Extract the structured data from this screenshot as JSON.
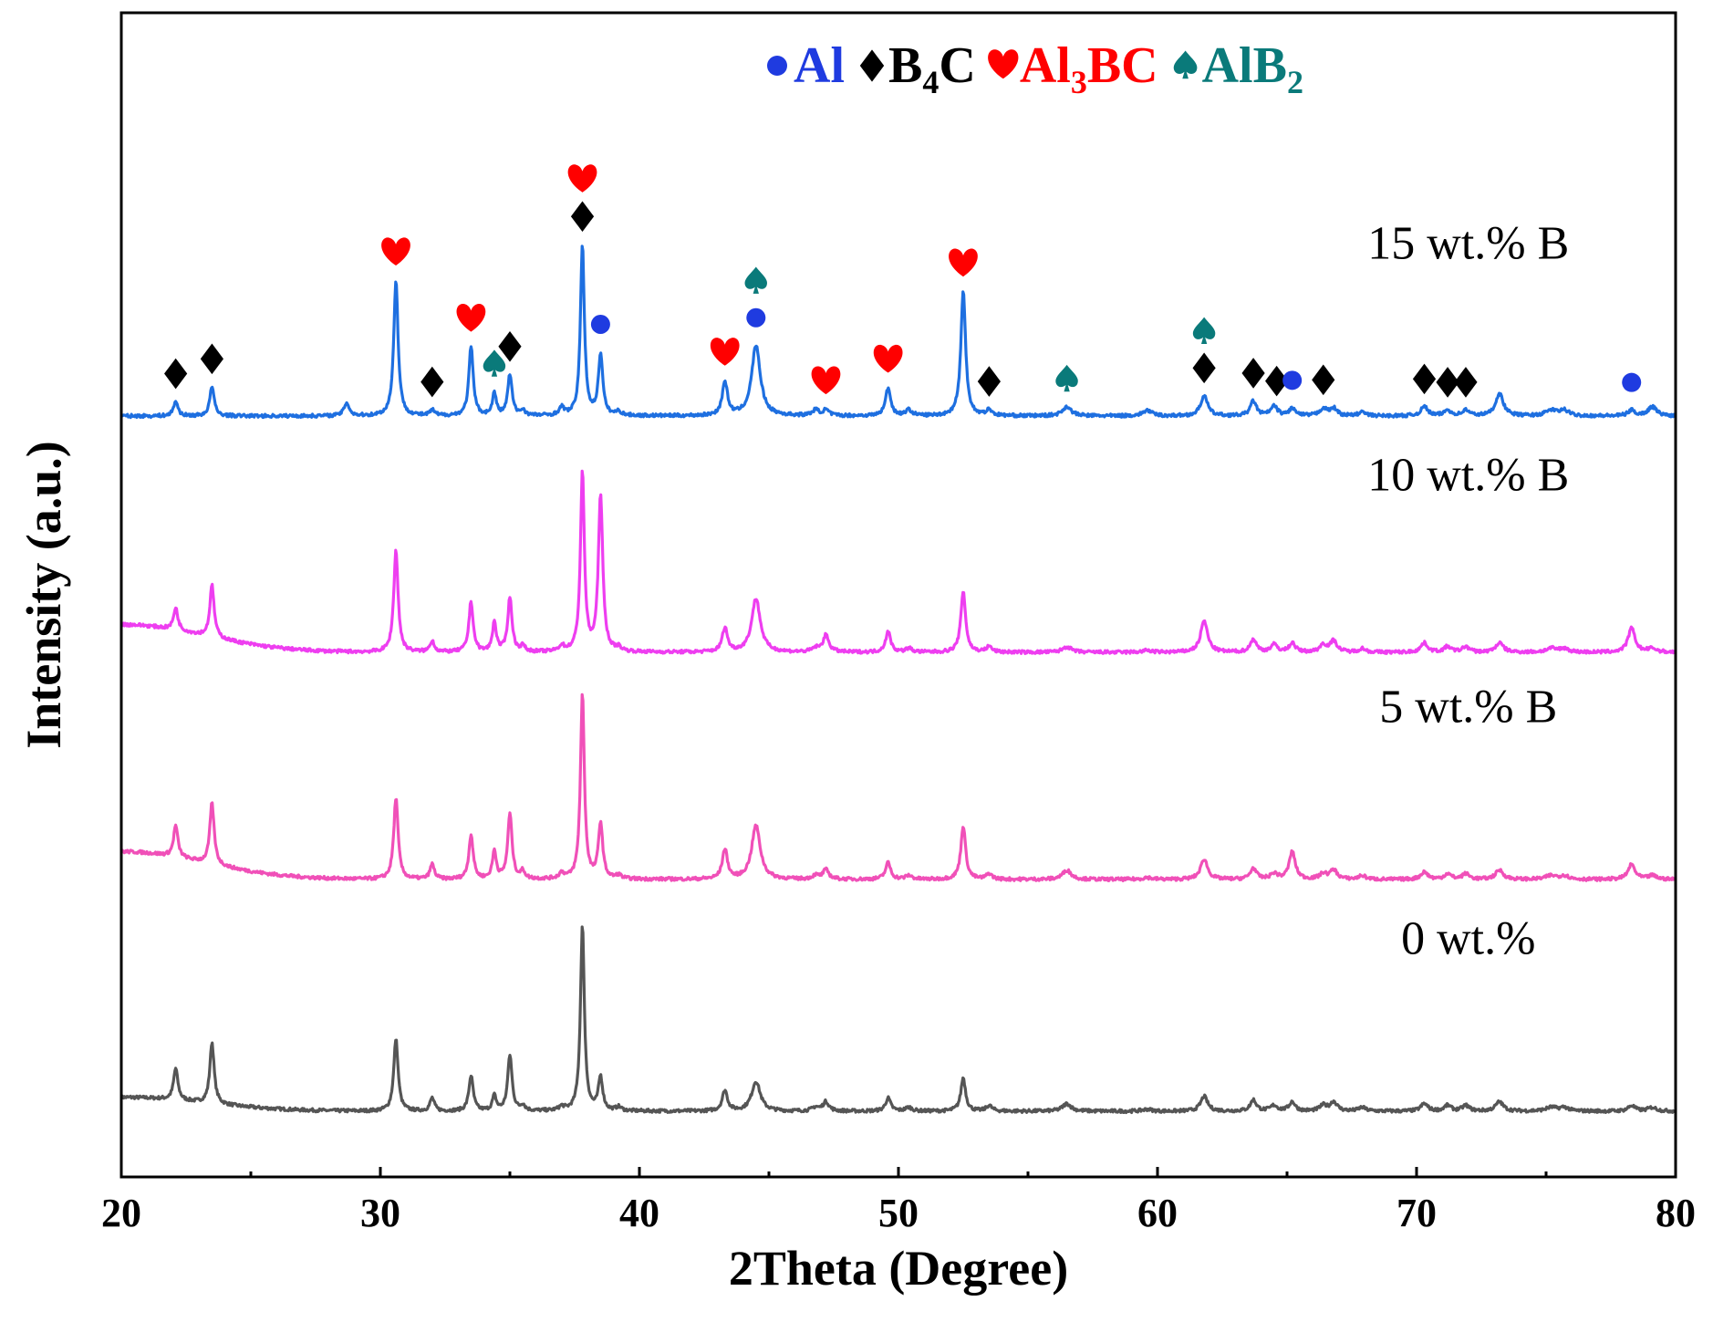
{
  "chart_data": {
    "type": "line",
    "title": "",
    "xlabel": "2Theta (Degree)",
    "ylabel": "Intensity (a.u.)",
    "xlim": [
      20,
      80
    ],
    "xticks": [
      "20",
      "30",
      "40",
      "50",
      "60",
      "70",
      "80"
    ],
    "grid": false,
    "legend": {
      "position": "top-right",
      "entries": [
        {
          "marker": "circle",
          "text": "Al",
          "color": "#1f3be0"
        },
        {
          "marker": "diamond",
          "text": "B",
          "sub": "4",
          "text2": "C",
          "color": "#000000"
        },
        {
          "marker": "heart",
          "text": "Al",
          "sub": "3",
          "text2": "BC",
          "color": "#ff0000"
        },
        {
          "marker": "spade",
          "text": "AlB",
          "sub": "2",
          "text2": "",
          "color": "#0a7a7a"
        }
      ]
    },
    "peaks": [
      {
        "x": 22.1,
        "w": 0.1
      },
      {
        "x": 23.5,
        "w": 0.1
      },
      {
        "x": 28.7,
        "w": 0.12
      },
      {
        "x": 30.6,
        "w": 0.1
      },
      {
        "x": 32.0,
        "w": 0.1
      },
      {
        "x": 33.5,
        "w": 0.1
      },
      {
        "x": 34.4,
        "w": 0.09
      },
      {
        "x": 35.0,
        "w": 0.1
      },
      {
        "x": 35.5,
        "w": 0.1
      },
      {
        "x": 37.0,
        "w": 0.12
      },
      {
        "x": 37.8,
        "w": 0.09
      },
      {
        "x": 38.5,
        "w": 0.1
      },
      {
        "x": 39.2,
        "w": 0.12
      },
      {
        "x": 43.3,
        "w": 0.12
      },
      {
        "x": 44.5,
        "w": 0.2
      },
      {
        "x": 46.8,
        "w": 0.15
      },
      {
        "x": 47.2,
        "w": 0.14
      },
      {
        "x": 49.6,
        "w": 0.12
      },
      {
        "x": 50.4,
        "w": 0.15
      },
      {
        "x": 52.5,
        "w": 0.11
      },
      {
        "x": 53.5,
        "w": 0.13
      },
      {
        "x": 56.5,
        "w": 0.2
      },
      {
        "x": 59.6,
        "w": 0.2
      },
      {
        "x": 61.8,
        "w": 0.16
      },
      {
        "x": 63.7,
        "w": 0.14
      },
      {
        "x": 64.5,
        "w": 0.16
      },
      {
        "x": 65.2,
        "w": 0.14
      },
      {
        "x": 66.4,
        "w": 0.16
      },
      {
        "x": 66.8,
        "w": 0.16
      },
      {
        "x": 67.9,
        "w": 0.16
      },
      {
        "x": 70.3,
        "w": 0.16
      },
      {
        "x": 71.2,
        "w": 0.16
      },
      {
        "x": 71.9,
        "w": 0.16
      },
      {
        "x": 73.2,
        "w": 0.18
      },
      {
        "x": 75.2,
        "w": 0.25
      },
      {
        "x": 75.7,
        "w": 0.2
      },
      {
        "x": 78.3,
        "w": 0.16
      },
      {
        "x": 79.1,
        "w": 0.2
      }
    ],
    "series": [
      {
        "name": "0 wt.%",
        "color": "#555555",
        "baseline_offset": 0.0,
        "bg_hump": 0.06,
        "intensities": [
          0.17,
          0.33,
          0.0,
          0.39,
          0.07,
          0.19,
          0.08,
          0.3,
          0.03,
          0.02,
          1.0,
          0.18,
          0.02,
          0.11,
          0.16,
          0.02,
          0.05,
          0.07,
          0.02,
          0.18,
          0.03,
          0.04,
          0.01,
          0.08,
          0.06,
          0.03,
          0.05,
          0.03,
          0.05,
          0.02,
          0.04,
          0.03,
          0.03,
          0.05,
          0.02,
          0.02,
          0.03,
          0.02
        ]
      },
      {
        "name": "5 wt.% B",
        "color": "#f050b8",
        "baseline_offset": 1.0,
        "bg_hump": 0.12,
        "intensities": [
          0.17,
          0.33,
          0.0,
          0.44,
          0.08,
          0.24,
          0.15,
          0.35,
          0.04,
          0.03,
          1.0,
          0.3,
          0.02,
          0.16,
          0.29,
          0.02,
          0.05,
          0.09,
          0.02,
          0.29,
          0.03,
          0.05,
          0.01,
          0.11,
          0.06,
          0.03,
          0.15,
          0.03,
          0.05,
          0.02,
          0.04,
          0.03,
          0.03,
          0.05,
          0.02,
          0.02,
          0.08,
          0.02
        ]
      },
      {
        "name": "10 wt.% B",
        "color": "#ee3ef0",
        "baseline_offset": 1.98,
        "bg_hump": 0.12,
        "intensities": [
          0.12,
          0.28,
          0.0,
          0.55,
          0.06,
          0.27,
          0.16,
          0.29,
          0.03,
          0.03,
          0.97,
          0.85,
          0.02,
          0.13,
          0.29,
          0.02,
          0.09,
          0.11,
          0.02,
          0.33,
          0.03,
          0.03,
          0.01,
          0.17,
          0.07,
          0.04,
          0.05,
          0.04,
          0.06,
          0.02,
          0.05,
          0.03,
          0.03,
          0.05,
          0.02,
          0.02,
          0.13,
          0.02
        ]
      },
      {
        "name": "15 wt.% B",
        "color": "#1e6fe0",
        "baseline_offset": 3.0,
        "bg_hump": 0.0,
        "intensities": [
          0.08,
          0.16,
          0.07,
          0.73,
          0.03,
          0.37,
          0.12,
          0.22,
          0.03,
          0.04,
          0.92,
          0.33,
          0.02,
          0.18,
          0.38,
          0.03,
          0.03,
          0.15,
          0.03,
          0.67,
          0.03,
          0.05,
          0.03,
          0.11,
          0.08,
          0.05,
          0.04,
          0.04,
          0.04,
          0.02,
          0.05,
          0.03,
          0.03,
          0.12,
          0.03,
          0.03,
          0.03,
          0.05
        ]
      }
    ],
    "series_labels": [
      {
        "text": "15 wt.% B",
        "x": 72,
        "y_level": 3.75
      },
      {
        "text": "10 wt.% B",
        "x": 72,
        "y_level": 2.75
      },
      {
        "text": "5 wt.% B",
        "x": 72,
        "y_level": 1.75
      },
      {
        "text": "0 wt.%",
        "x": 72,
        "y_level": 0.75
      }
    ],
    "annotations": [
      {
        "phase": "diamond",
        "x": 22.1,
        "row": 0
      },
      {
        "phase": "diamond",
        "x": 23.5,
        "row": 0
      },
      {
        "phase": "heart",
        "x": 30.6,
        "row": 0
      },
      {
        "phase": "diamond",
        "x": 32.0,
        "row": 0
      },
      {
        "phase": "heart",
        "x": 33.5,
        "row": 0
      },
      {
        "phase": "spade",
        "x": 34.4,
        "row": 0
      },
      {
        "phase": "diamond",
        "x": 35.0,
        "row": 0
      },
      {
        "phase": "diamond",
        "x": 37.8,
        "row": 0
      },
      {
        "phase": "heart",
        "x": 37.8,
        "row": 1
      },
      {
        "phase": "circle",
        "x": 38.5,
        "row": 0
      },
      {
        "phase": "heart",
        "x": 43.3,
        "row": 0
      },
      {
        "phase": "circle",
        "x": 44.5,
        "row": 0
      },
      {
        "phase": "spade",
        "x": 44.5,
        "row": 1
      },
      {
        "phase": "heart",
        "x": 47.2,
        "row": 0
      },
      {
        "phase": "heart",
        "x": 49.6,
        "row": 0
      },
      {
        "phase": "heart",
        "x": 52.5,
        "row": 0
      },
      {
        "phase": "diamond",
        "x": 53.5,
        "row": 0
      },
      {
        "phase": "spade",
        "x": 56.5,
        "row": 0
      },
      {
        "phase": "diamond",
        "x": 61.8,
        "row": 0
      },
      {
        "phase": "spade",
        "x": 61.8,
        "row": 1
      },
      {
        "phase": "diamond",
        "x": 63.7,
        "row": 0
      },
      {
        "phase": "diamond",
        "x": 64.6,
        "row": 0
      },
      {
        "phase": "circle",
        "x": 65.2,
        "row": 0
      },
      {
        "phase": "diamond",
        "x": 66.4,
        "row": 0
      },
      {
        "phase": "diamond",
        "x": 70.3,
        "row": 0
      },
      {
        "phase": "diamond",
        "x": 71.2,
        "row": 0
      },
      {
        "phase": "diamond",
        "x": 71.9,
        "row": 0
      },
      {
        "phase": "circle",
        "x": 78.3,
        "row": 0
      }
    ]
  }
}
